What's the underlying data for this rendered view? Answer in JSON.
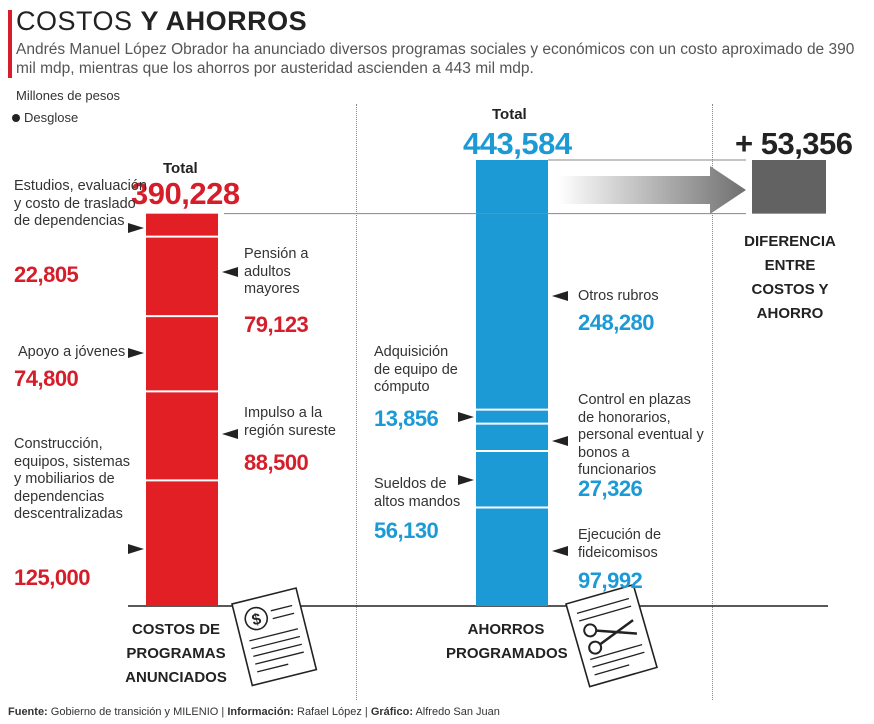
{
  "title": {
    "part1": "COSTOS",
    "part2": "Y AHORROS"
  },
  "subtitle": "Andrés Manuel López Obrador ha anunciado diversos programas sociales y económicos con un costo aproximado de 390 mil mdp, mientras que los ahorros por austeridad ascienden a 443 mil mdp.",
  "units": "Millones de pesos",
  "legend": "Desglose",
  "costs": {
    "total_label": "Total",
    "total_value": "390,228",
    "column_label": "COSTOS DE PROGRAMAS ANUNCIADOS",
    "items": [
      {
        "label": "Estudios, evaluación y costo de traslado de dependencias",
        "value": "22,805"
      },
      {
        "label": "Pensión a adultos mayores",
        "value": "79,123"
      },
      {
        "label": "Apoyo a jóvenes",
        "value": "74,800"
      },
      {
        "label": "Impulso a la región sureste",
        "value": "88,500"
      },
      {
        "label": "Construcción, equipos, sistemas y mobiliarios de dependencias descentralizadas",
        "value": "125,000"
      }
    ]
  },
  "savings": {
    "total_label": "Total",
    "total_value": "443,584",
    "column_label": "AHORROS PROGRAMADOS",
    "items": [
      {
        "label": "Otros rubros",
        "value": "248,280"
      },
      {
        "label": "Adquisición de equipo de cómputo",
        "value": "13,856"
      },
      {
        "label": "Control en plazas de honorarios, personal eventual y bonos a funcionarios",
        "value": "27,326"
      },
      {
        "label": "Sueldos de altos mandos",
        "value": "56,130"
      },
      {
        "label": "Ejecución de fideicomisos",
        "value": "97,992"
      }
    ]
  },
  "difference": {
    "value": "+ 53,356",
    "label": "DIFERENCIA ENTRE COSTOS Y AHORRO"
  },
  "footer": {
    "source_label": "Fuente:",
    "source": "Gobierno de transición y MILENIO",
    "info_label": "Información:",
    "info": "Rafael López",
    "graphic_label": "Gráfico:",
    "graphic": "Alfredo San Juan"
  },
  "icons": [
    "dollar-document-icon",
    "scissors-document-icon"
  ],
  "colors": {
    "costs": "#e31f26",
    "savings": "#1b9ad6",
    "difference": "#626262",
    "title_accent": "#d51e2a"
  },
  "chart_data": {
    "type": "bar",
    "title": "COSTOS Y AHORROS",
    "ylabel": "Millones de pesos",
    "categories": [
      "COSTOS DE PROGRAMAS ANUNCIADOS",
      "AHORROS PROGRAMADOS",
      "DIFERENCIA ENTRE COSTOS Y AHORRO"
    ],
    "totals": [
      390228,
      443584,
      53356
    ],
    "stacked": true,
    "series": [
      {
        "category": "COSTOS DE PROGRAMAS ANUNCIADOS",
        "segments_top_to_bottom": [
          {
            "name": "Estudios, evaluación y costo de traslado de dependencias",
            "value": 22805
          },
          {
            "name": "Pensión a adultos mayores",
            "value": 79123
          },
          {
            "name": "Apoyo a jóvenes",
            "value": 74800
          },
          {
            "name": "Impulso a la región sureste",
            "value": 88500
          },
          {
            "name": "Construcción, equipos, sistemas y mobiliarios de dependencias descentralizadas",
            "value": 125000
          }
        ]
      },
      {
        "category": "AHORROS PROGRAMADOS",
        "segments_top_to_bottom": [
          {
            "name": "Otros rubros",
            "value": 248280
          },
          {
            "name": "Adquisición de equipo de cómputo",
            "value": 13856
          },
          {
            "name": "Control en plazas de honorarios, personal eventual y bonos a funcionarios",
            "value": 27326
          },
          {
            "name": "Sueldos de altos mandos",
            "value": 56130
          },
          {
            "name": "Ejecución de fideicomisos",
            "value": 97992
          }
        ]
      }
    ]
  }
}
